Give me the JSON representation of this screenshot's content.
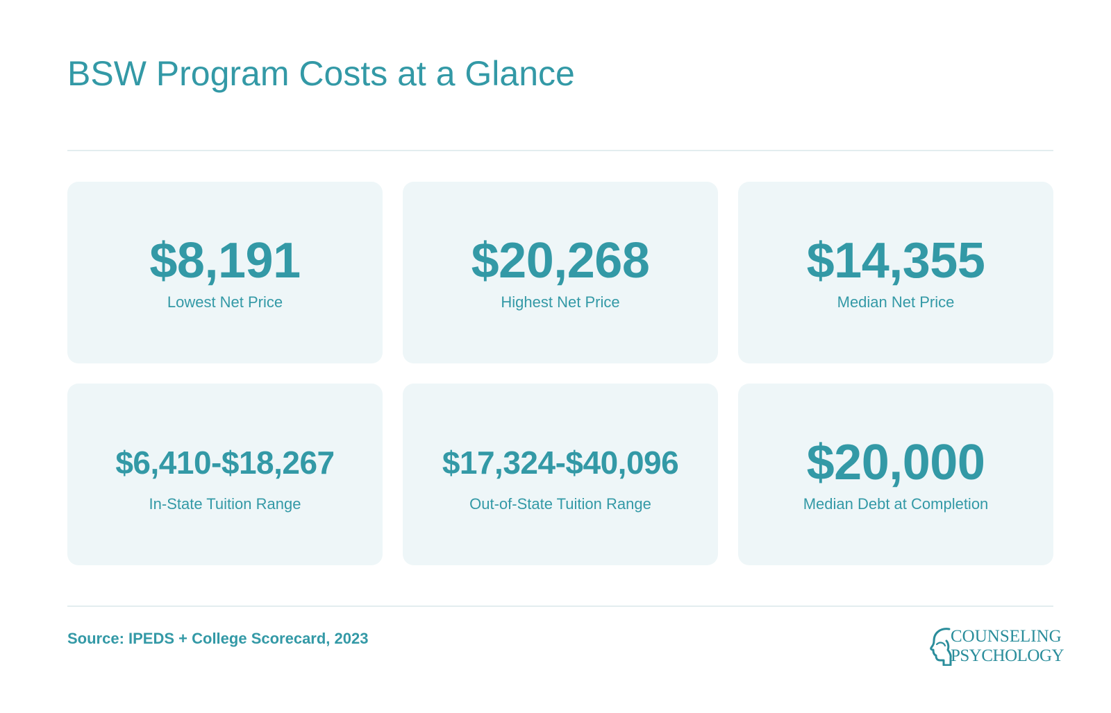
{
  "title": "BSW Program Costs at a Glance",
  "cards": [
    {
      "value": "$8,191",
      "label": "Lowest Net Price"
    },
    {
      "value": "$20,268",
      "label": "Highest Net Price"
    },
    {
      "value": "$14,355",
      "label": "Median Net Price"
    },
    {
      "value": "$6,410-$18,267",
      "label": "In-State Tuition Range"
    },
    {
      "value": "$17,324-$40,096",
      "label": "Out-of-State Tuition Range"
    },
    {
      "value": "$20,000",
      "label": "Median Debt at Completion"
    }
  ],
  "source": "Source: IPEDS + College Scorecard, 2023",
  "logo": {
    "line1": "COUNSELING",
    "line2": "PSYCHOLOGY",
    "icon": "head-profile-icon"
  },
  "colors": {
    "accent": "#3399a6",
    "card_bg": "#eef6f8",
    "rule": "#e3edef"
  }
}
